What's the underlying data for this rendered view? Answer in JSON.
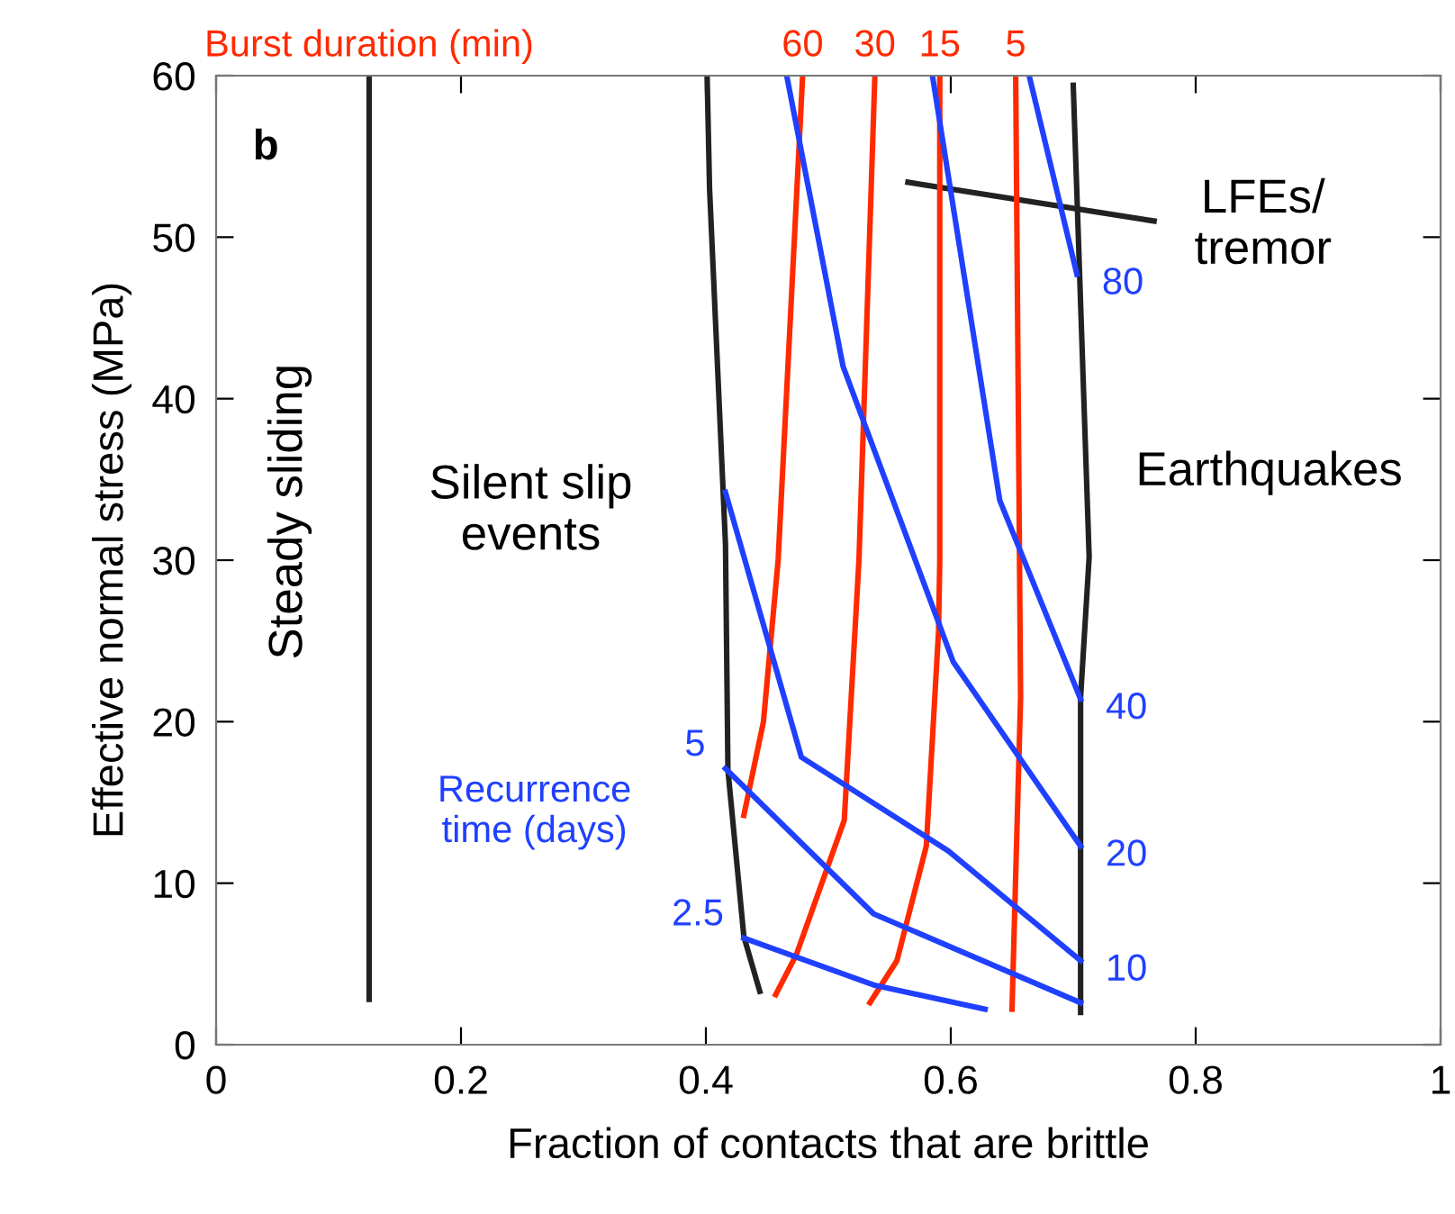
{
  "chart_data": {
    "type": "line",
    "xlabel": "Fraction of contacts that are brittle",
    "ylabel": "Effective normal stress (MPa)",
    "xlim": [
      0,
      1
    ],
    "ylim": [
      0,
      60
    ],
    "xticks": [
      0,
      0.2,
      0.4,
      0.6,
      0.8,
      1
    ],
    "yticks": [
      0,
      10,
      20,
      30,
      40,
      50,
      60
    ],
    "grid": false,
    "marker": "none",
    "line_style": "solid",
    "annotations": [
      "b",
      "Steady sliding",
      "Silent slip\nevents",
      "Earthquakes",
      "LFEs/\ntremor",
      "Recurrence\ntime (days)",
      "Burst duration (min)"
    ],
    "series": [
      {
        "color": "#222222",
        "x": [
          0.125,
          0.125
        ],
        "values": [
          2.8,
          60
        ]
      },
      {
        "color": "#222222",
        "x": [
          0.401,
          0.403,
          0.416,
          0.418,
          0.431,
          0.444
        ],
        "values": [
          60,
          53,
          31,
          17,
          6.7,
          3.3
        ]
      },
      {
        "color": "#222222",
        "x": [
          0.7,
          0.713,
          0.706,
          0.706
        ],
        "values": [
          59.4,
          30.2,
          21.5,
          2
        ]
      },
      {
        "color": "#222222",
        "x": [
          0.565,
          0.766
        ],
        "values": [
          53.4,
          51
        ]
      },
      {
        "name": "60",
        "color": "#ff2a00",
        "x": [
          0.479,
          0.459,
          0.447,
          0.431
        ],
        "values": [
          60,
          30,
          20,
          14.2
        ]
      },
      {
        "name": "30",
        "color": "#ff2a00",
        "x": [
          0.538,
          0.525,
          0.513,
          0.474,
          0.457
        ],
        "values": [
          60,
          30,
          13.9,
          5.6,
          3.1
        ]
      },
      {
        "name": "15",
        "color": "#ff2a00",
        "x": [
          0.591,
          0.591,
          0.59,
          0.58,
          0.556,
          0.534
        ],
        "values": [
          60,
          30,
          25.6,
          12.3,
          5.2,
          2.6
        ]
      },
      {
        "name": "5",
        "color": "#ff2a00",
        "x": [
          0.653,
          0.657,
          0.65
        ],
        "values": [
          60,
          21.5,
          2.2
        ]
      },
      {
        "name": "80",
        "color": "#2040ff",
        "x": [
          0.703,
          0.664
        ],
        "values": [
          47.7,
          60
        ]
      },
      {
        "name": "40",
        "color": "#2040ff",
        "x": [
          0.706,
          0.64,
          0.585
        ],
        "values": [
          21.4,
          33.7,
          60
        ]
      },
      {
        "name": "20",
        "color": "#2040ff",
        "x": [
          0.706,
          0.602,
          0.512,
          0.466
        ],
        "values": [
          12.3,
          23.7,
          42,
          60
        ]
      },
      {
        "name": "10",
        "color": "#2040ff",
        "x": [
          0.706,
          0.598,
          0.478,
          0.416
        ],
        "values": [
          5.2,
          12,
          17.8,
          34.2
        ]
      },
      {
        "name": "5",
        "color": "#2040ff",
        "x": [
          0.416,
          0.537,
          0.706
        ],
        "values": [
          17.1,
          8.1,
          2.6
        ]
      },
      {
        "name": "2.5",
        "color": "#2040ff",
        "x": [
          0.431,
          0.537,
          0.628
        ],
        "values": [
          6.6,
          3.7,
          2.2
        ]
      }
    ]
  }
}
